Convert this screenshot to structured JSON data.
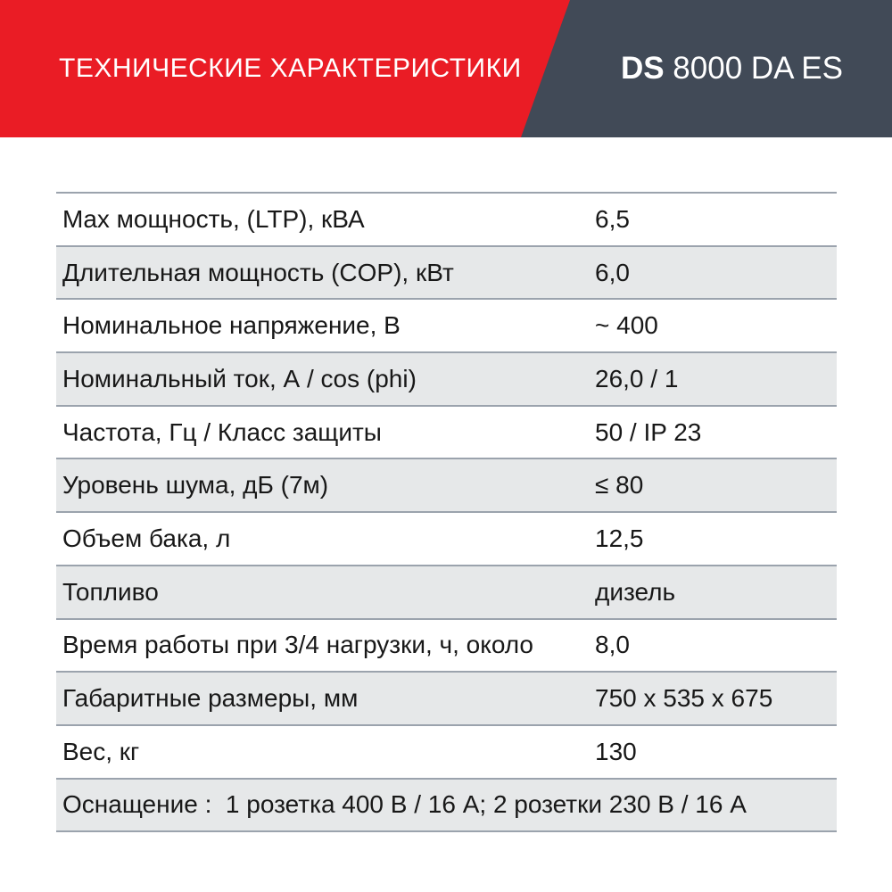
{
  "colors": {
    "brand_red": "#ea1c25",
    "header_dark": "#414a57",
    "header_text": "#ffffff",
    "row_stripe": "#e6e8e9",
    "separator": "#9ba3ad",
    "table_text": "#181818",
    "page_bg": "#ffffff"
  },
  "header": {
    "title": "ТЕХНИЧЕСКИЕ ХАРАКТЕРИСТИКИ",
    "model": {
      "prefix": "DS",
      "rest": " 8000 DA ES"
    }
  },
  "table": {
    "rows": [
      {
        "label": "Max мощность, (LTP), кВА",
        "value": "6,5"
      },
      {
        "label": "Длительная мощность (COP), кВт",
        "value": "6,0"
      },
      {
        "label": "Номинальное напряжение, В",
        "value": "~ 400"
      },
      {
        "label": "Номинальный ток, А / cos (phi)",
        "value": "26,0 / 1"
      },
      {
        "label": "Частота, Гц / Класс защиты",
        "value": "50 / IP 23"
      },
      {
        "label": "Уровень шума, дБ (7м)",
        "value": "≤ 80"
      },
      {
        "label": "Объем бака, л",
        "value": "12,5"
      },
      {
        "label": "Топливо",
        "value": "дизель"
      },
      {
        "label": "Время работы при 3/4 нагрузки, ч, около",
        "value": "8,0"
      },
      {
        "label": "Габаритные размеры, мм",
        "value": "750 x 535 x 675"
      },
      {
        "label": "Вес, кг",
        "value": "130"
      }
    ],
    "equipment": "Оснащение :  1 розетка 400 В / 16 А; 2 розетки 230 В / 16 А"
  }
}
